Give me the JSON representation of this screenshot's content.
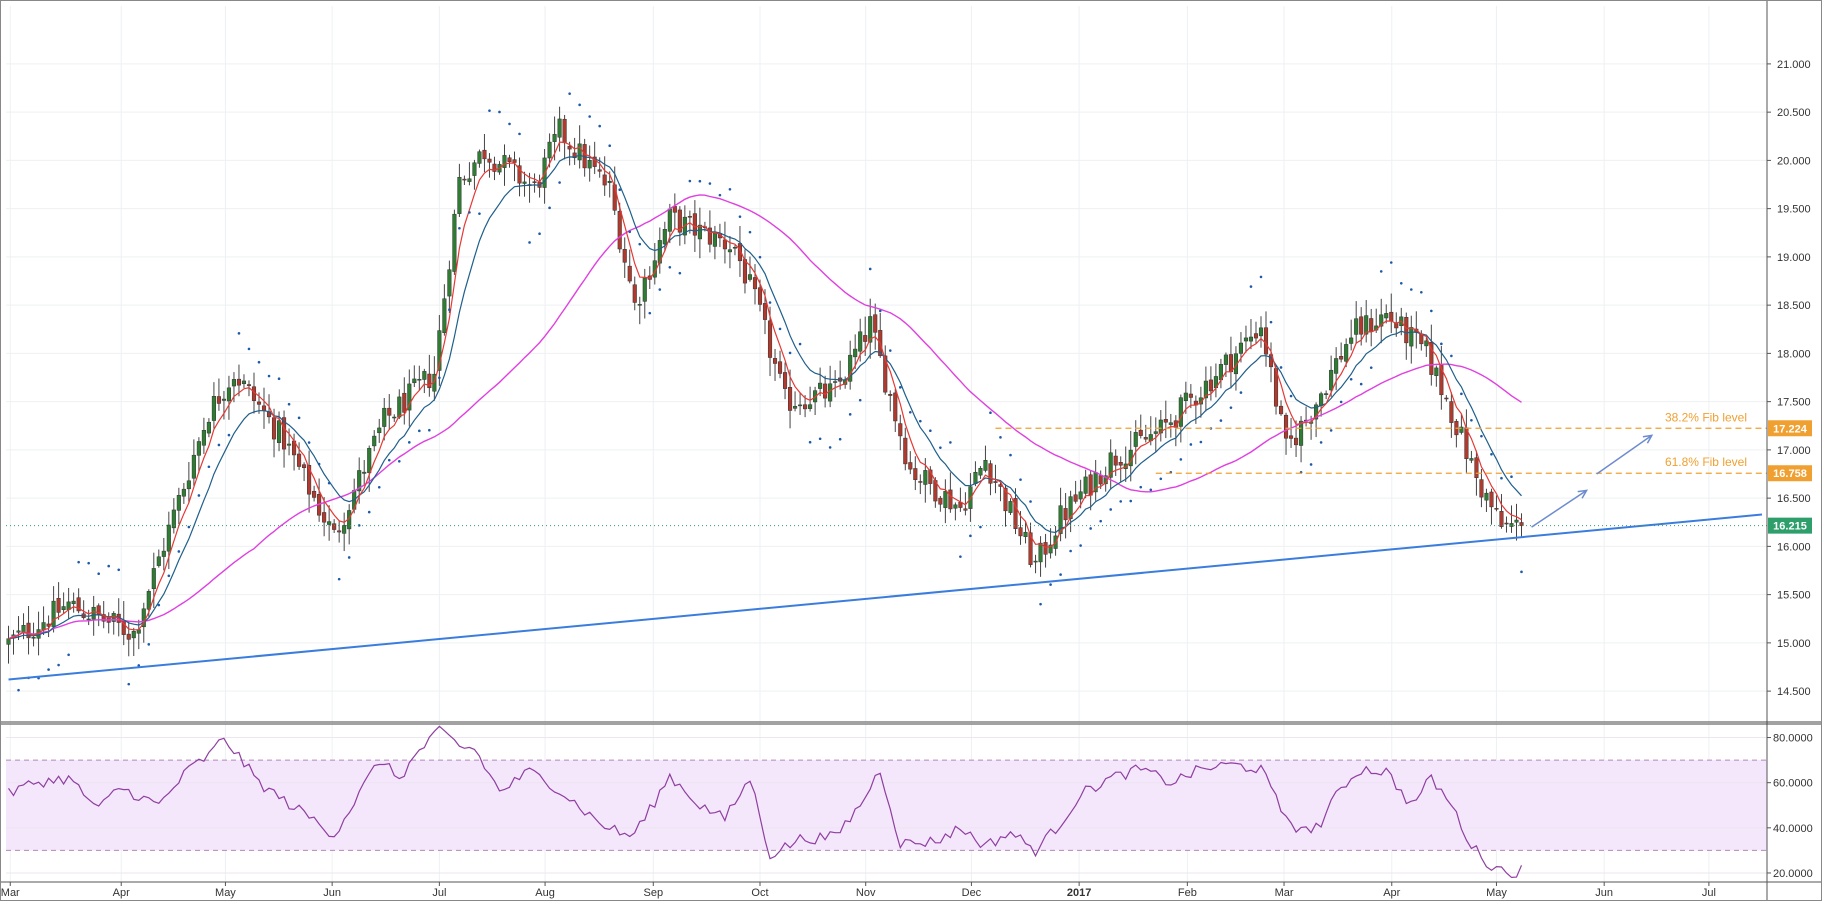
{
  "chart_data": [
    {
      "type": "candlestick",
      "panel": "price",
      "grid": true,
      "colors": {
        "up": "#2e7d32",
        "down": "#b03a2e",
        "ema_fast": "#e53935",
        "ema_slow": "#1f5f8b",
        "sma_long": "#e040e0",
        "psar": "#1e5aa8",
        "trendline": "#3b7ddd",
        "fib": "#f0a030",
        "last_price": "#2e9e6b"
      },
      "x_ticks": [
        {
          "label": "Mar",
          "t": 0.35
        },
        {
          "label": "Apr",
          "t": 22.5
        },
        {
          "label": "May",
          "t": 43.3
        },
        {
          "label": "Jun",
          "t": 64.6
        },
        {
          "label": "Jul",
          "t": 86.0
        },
        {
          "label": "Aug",
          "t": 107.1
        },
        {
          "label": "Sep",
          "t": 128.7
        },
        {
          "label": "Oct",
          "t": 150.0
        },
        {
          "label": "Nov",
          "t": 171.1
        },
        {
          "label": "Dec",
          "t": 192.2
        },
        {
          "label": "2017",
          "t": 213.7
        },
        {
          "label": "Feb",
          "t": 235.3
        },
        {
          "label": "Mar",
          "t": 254.6
        },
        {
          "label": "Apr",
          "t": 276.1
        },
        {
          "label": "May",
          "t": 297.0
        },
        {
          "label": "Jun",
          "t": 318.5
        },
        {
          "label": "Jul",
          "t": 339.4
        }
      ],
      "xlim": [
        -0.5,
        351
      ],
      "y_ticks": [
        "21.000",
        "20.500",
        "20.000",
        "19.500",
        "19.000",
        "18.500",
        "18.000",
        "17.500",
        "17.000",
        "16.500",
        "16.000",
        "15.500",
        "15.000",
        "14.500"
      ],
      "ylim": [
        14.18,
        21.6
      ],
      "price_series": {
        "t": [
          0,
          12,
          25,
          40,
          45,
          55,
          65,
          75,
          85,
          90,
          95,
          105,
          110,
          120,
          125,
          132,
          145,
          150,
          155,
          165,
          172,
          180,
          190,
          195,
          205,
          210,
          220,
          230,
          245,
          250,
          255,
          260,
          268,
          275,
          283,
          288,
          293,
          298,
          302
        ],
        "v": [
          15.0,
          15.4,
          15.1,
          17.4,
          17.8,
          17.1,
          16.1,
          17.3,
          17.8,
          19.8,
          20.1,
          19.7,
          20.3,
          19.7,
          18.5,
          19.4,
          19.1,
          18.4,
          17.5,
          17.6,
          18.3,
          16.8,
          16.4,
          16.9,
          15.8,
          16.3,
          16.9,
          17.2,
          18.0,
          18.3,
          17.0,
          17.4,
          18.2,
          18.4,
          18.0,
          17.4,
          16.7,
          16.2,
          16.215
        ]
      },
      "overlays": {
        "ema_fast_end": 16.6,
        "ema_slow_end": 16.95,
        "sma_long_end": 17.45,
        "trendline": {
          "t": [
            0,
            350
          ],
          "v": [
            14.62,
            16.33
          ]
        }
      },
      "fib_levels": [
        {
          "label": "38.2% Fib level",
          "value": 17.224,
          "t_start": 197
        },
        {
          "label": "61.8% Fib level",
          "value": 16.758,
          "t_start": 229
        }
      ],
      "arrows": [
        {
          "t": [
            304,
            315
          ],
          "v": [
            16.2,
            16.58
          ]
        },
        {
          "t": [
            317,
            328
          ],
          "v": [
            16.75,
            17.15
          ]
        }
      ],
      "price_labels": [
        {
          "text": "17.224",
          "value": 17.224,
          "bg": "#f0a030"
        },
        {
          "text": "16.758",
          "value": 16.758,
          "bg": "#f0a030"
        },
        {
          "text": "16.215",
          "value": 16.215,
          "bg": "#2e9e6b"
        }
      ]
    },
    {
      "type": "line",
      "panel": "rsi",
      "ylim": [
        16,
        86
      ],
      "y_ticks": [
        "80.0000",
        "60.0000",
        "40.0000",
        "20.0000"
      ],
      "band": [
        30,
        70
      ],
      "color": "#8e3fa0",
      "x": [
        0,
        5,
        12,
        18,
        22,
        30,
        36,
        40,
        43,
        50,
        55,
        60,
        65,
        70,
        74,
        78,
        82,
        86,
        88,
        90,
        93,
        98,
        104,
        108,
        112,
        118,
        124,
        127,
        132,
        138,
        143,
        148,
        152,
        158,
        165,
        170,
        174,
        178,
        185,
        190,
        195,
        200,
        205,
        210,
        214,
        220,
        226,
        232,
        238,
        244,
        250,
        254,
        258,
        262,
        266,
        270,
        275,
        280,
        284,
        288,
        292,
        296,
        300,
        303
      ],
      "y": [
        55,
        60,
        62,
        48,
        58,
        50,
        66,
        72,
        80,
        60,
        52,
        45,
        37,
        55,
        70,
        62,
        74,
        83,
        80,
        76,
        75,
        56,
        65,
        60,
        53,
        42,
        36,
        44,
        63,
        50,
        44,
        62,
        28,
        35,
        36,
        50,
        66,
        33,
        34,
        40,
        32,
        38,
        30,
        42,
        55,
        62,
        66,
        60,
        66,
        68,
        66,
        48,
        38,
        42,
        58,
        66,
        65,
        50,
        62,
        50,
        32,
        23,
        20,
        22
      ]
    }
  ]
}
